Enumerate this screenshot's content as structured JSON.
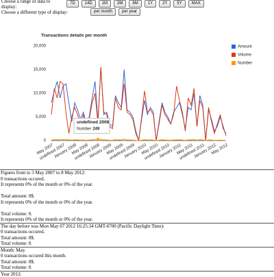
{
  "controls": {
    "range_label": "Choose a range of data to display:",
    "range_buttons": [
      "7D",
      "14D",
      "1M",
      "3M",
      "6M",
      "1Y",
      "2Y",
      "5Y",
      "MAX"
    ],
    "type_label": "Choose a different type of display:",
    "type_buttons": [
      "per month",
      "per year"
    ]
  },
  "chart_data": {
    "type": "line",
    "title": "Transactions details per month",
    "categories": [
      "May 2007",
      null,
      null,
      null,
      "undefined 2007",
      null,
      null,
      null,
      "January 2008",
      null,
      null,
      null,
      "May 2008",
      null,
      null,
      null,
      "undefined 2008",
      null,
      null,
      null,
      "January 2009",
      null,
      null,
      null,
      "May 2009",
      null,
      null,
      null,
      "undefined 2009",
      null,
      null,
      null,
      "January 2010",
      null,
      null,
      null,
      "May 2010",
      null,
      null,
      null,
      "undefined 2010",
      null,
      null,
      null,
      "January 2011",
      null,
      null,
      null,
      "May 2011",
      null,
      null,
      null,
      "undefined 2011",
      null,
      null,
      null,
      "January 2012",
      null,
      null,
      null,
      "May 2012"
    ],
    "series": [
      {
        "name": "Amount",
        "color": "#3366cc",
        "values": [
          8000,
          10500,
          12500,
          9000,
          11500,
          12000,
          8000,
          4000,
          8000,
          6500,
          4500,
          6000,
          3500,
          5000,
          9000,
          12500,
          4000,
          15500,
          5500,
          6000,
          3500,
          3000,
          9500,
          8000,
          7000,
          15000,
          6500,
          6000,
          5000,
          2000,
          0,
          4500,
          8500,
          5500,
          7000,
          6000,
          0,
          4000,
          8000,
          6000,
          5000,
          3500,
          6000,
          7000,
          8000,
          5500,
          2500,
          7000,
          6500,
          10000,
          3000,
          9500,
          7500,
          0,
          6500,
          4500,
          2000,
          3000,
          5000,
          3000,
          1000
        ]
      },
      {
        "name": "Volume",
        "color": "#dc3912",
        "values": [
          5500,
          11000,
          9000,
          12500,
          12000,
          6000,
          1500,
          5000,
          7000,
          5500,
          3000,
          5500,
          3000,
          4500,
          8000,
          10000,
          3500,
          15500,
          6000,
          5500,
          3000,
          2500,
          9000,
          7000,
          6500,
          12000,
          6000,
          5500,
          4500,
          1500,
          0,
          5000,
          10500,
          6000,
          6500,
          5500,
          0,
          3500,
          7500,
          5500,
          4500,
          3500,
          5500,
          11500,
          8500,
          6000,
          2000,
          9000,
          7500,
          11000,
          3000,
          8500,
          7000,
          0,
          7000,
          4000,
          1500,
          3500,
          5500,
          2500,
          1500
        ]
      },
      {
        "name": "Number",
        "color": "#ff9900",
        "values": [
          120,
          180,
          200,
          190,
          210,
          220,
          170,
          90,
          160,
          140,
          100,
          130,
          80,
          110,
          190,
          250,
          249,
          300,
          130,
          140,
          80,
          70,
          200,
          170,
          150,
          290,
          140,
          130,
          110,
          50,
          0,
          100,
          180,
          120,
          150,
          130,
          0,
          90,
          170,
          130,
          110,
          80,
          130,
          150,
          170,
          120,
          60,
          150,
          140,
          210,
          70,
          200,
          160,
          0,
          140,
          100,
          50,
          70,
          110,
          70,
          30
        ]
      }
    ],
    "ylim": [
      0,
      20000
    ],
    "yticks": [
      0,
      {
        "value": 5000,
        "label": "5,000"
      },
      {
        "value": 10000,
        "label": "10,000"
      },
      {
        "value": 15000,
        "label": "15,000"
      },
      {
        "value": 20000,
        "label": "20,000"
      }
    ],
    "grid": false,
    "legend": "right"
  },
  "sections": [
    {
      "paragraphs": [
        [
          "Figures from to 3 May 2007 to 8 May 2012:",
          "0 transactions occured.",
          "It represents 0% of the month or 0% of the year."
        ],
        [
          "Total amount: 0$.",
          "It represents 0% of the month or 0% of the year."
        ],
        [
          "Total volume: 0.",
          "It represents 0% of the month or 0% of the year."
        ]
      ]
    },
    {
      "paragraphs": [
        [
          "The day before was Mon May 07 2012 16:25:34 GMT-0700 (Pacific Daylight Time):",
          "0 transactions occured.",
          "Total amount: 0$.",
          "Total volume: 0."
        ]
      ]
    },
    {
      "paragraphs": [
        [
          "Month: May.",
          "0 transactions occured this month.",
          "Total amount: 0$.",
          "Total volume: 0."
        ]
      ]
    },
    {
      "paragraphs": [
        [
          "Year 2012:"
        ]
      ]
    }
  ]
}
